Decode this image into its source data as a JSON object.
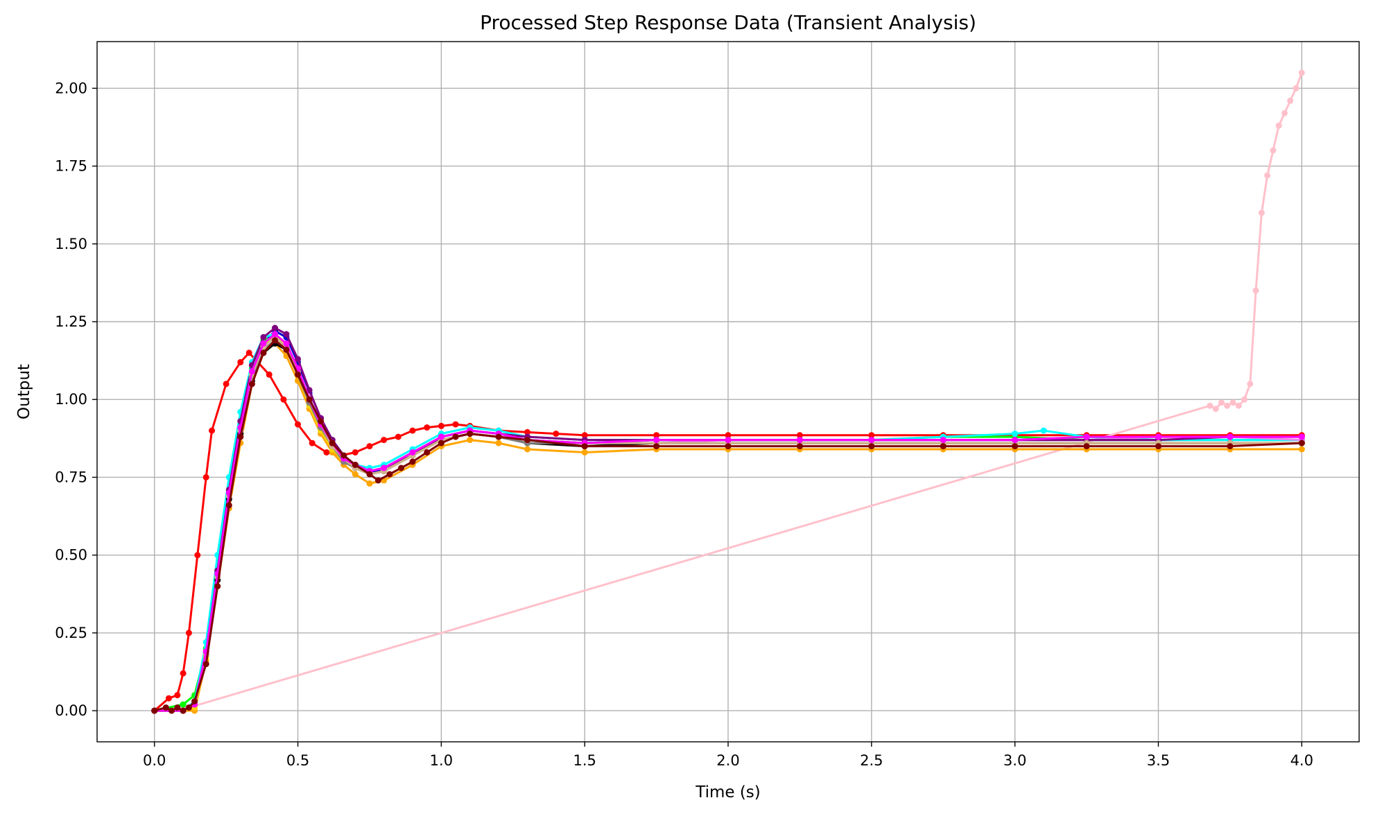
{
  "chart_data": {
    "type": "line",
    "title": "Processed Step Response Data (Transient Analysis)",
    "xlabel": "Time (s)",
    "ylabel": "Output",
    "xlim": [
      -0.2,
      4.2
    ],
    "ylim": [
      -0.1,
      2.15
    ],
    "xticks": [
      0.0,
      0.5,
      1.0,
      1.5,
      2.0,
      2.5,
      3.0,
      3.5,
      4.0
    ],
    "xtick_labels": [
      "0.0",
      "0.5",
      "1.0",
      "1.5",
      "2.0",
      "2.5",
      "3.0",
      "3.5",
      "4.0"
    ],
    "yticks": [
      0.0,
      0.25,
      0.5,
      0.75,
      1.0,
      1.25,
      1.5,
      1.75,
      2.0
    ],
    "ytick_labels": [
      "0.00",
      "0.25",
      "0.50",
      "0.75",
      "1.00",
      "1.25",
      "1.50",
      "1.75",
      "2.00"
    ],
    "grid": true,
    "legend": "none",
    "colors": {
      "bundle": [
        "#0000cd",
        "#00ff00",
        "#00ffff",
        "#ffa500",
        "#ee82ee",
        "#ff00ff",
        "#800080",
        "#ffd700",
        "#c0a090",
        "#000000",
        "#808080",
        "#d2b48c"
      ],
      "early": "#ff0000",
      "late": "#ffc0cb",
      "front": "#800000",
      "grid": "#b0b0b0"
    },
    "series": [
      {
        "color": "#ff0000",
        "x": [
          0.0,
          0.05,
          0.08,
          0.1,
          0.12,
          0.15,
          0.18,
          0.2,
          0.25,
          0.3,
          0.33,
          0.4,
          0.45,
          0.5,
          0.55,
          0.6,
          0.65,
          0.7,
          0.75,
          0.8,
          0.85,
          0.9,
          0.95,
          1.0,
          1.05,
          1.1,
          1.2,
          1.3,
          1.4,
          1.5,
          1.75,
          2.0,
          2.25,
          2.5,
          2.75,
          3.0,
          3.25,
          3.5,
          3.75,
          4.0
        ],
        "y": [
          0.0,
          0.04,
          0.05,
          0.12,
          0.25,
          0.5,
          0.75,
          0.9,
          1.05,
          1.12,
          1.15,
          1.08,
          1.0,
          0.92,
          0.86,
          0.83,
          0.82,
          0.83,
          0.85,
          0.87,
          0.88,
          0.9,
          0.91,
          0.915,
          0.92,
          0.915,
          0.9,
          0.895,
          0.89,
          0.885,
          0.885,
          0.885,
          0.885,
          0.885,
          0.885,
          0.885,
          0.885,
          0.885,
          0.885,
          0.885
        ]
      },
      {
        "color": "#ffc0cb",
        "x": [
          0.0,
          0.12,
          3.68,
          3.7,
          3.72,
          3.74,
          3.76,
          3.78,
          3.8,
          3.82,
          3.84,
          3.86,
          3.88,
          3.9,
          3.92,
          3.94,
          3.96,
          3.98,
          4.0
        ],
        "y": [
          0.0,
          0.01,
          0.98,
          0.97,
          0.99,
          0.98,
          0.99,
          0.98,
          1.0,
          1.05,
          1.35,
          1.6,
          1.72,
          1.8,
          1.88,
          1.92,
          1.96,
          2.0,
          2.05
        ]
      },
      {
        "color": "#0000cd",
        "x": [
          0.0,
          0.1,
          0.14,
          0.18,
          0.22,
          0.26,
          0.3,
          0.34,
          0.38,
          0.42,
          0.46,
          0.5,
          0.54,
          0.58,
          0.62,
          0.66,
          0.7,
          0.75,
          0.8,
          0.9,
          1.0,
          1.1,
          1.2,
          1.3,
          1.5,
          1.75,
          2.0,
          2.25,
          2.5,
          2.75,
          3.0,
          3.25,
          3.5,
          3.75,
          4.0
        ],
        "y": [
          0.0,
          0.0,
          0.02,
          0.18,
          0.42,
          0.68,
          0.9,
          1.08,
          1.18,
          1.22,
          1.2,
          1.12,
          1.02,
          0.94,
          0.87,
          0.82,
          0.79,
          0.77,
          0.77,
          0.82,
          0.88,
          0.9,
          0.89,
          0.87,
          0.86,
          0.87,
          0.87,
          0.87,
          0.87,
          0.87,
          0.87,
          0.87,
          0.87,
          0.87,
          0.87
        ]
      },
      {
        "color": "#00ff00",
        "x": [
          0.0,
          0.1,
          0.14,
          0.18,
          0.22,
          0.26,
          0.3,
          0.34,
          0.38,
          0.42,
          0.46,
          0.5,
          0.54,
          0.58,
          0.62,
          0.66,
          0.7,
          0.75,
          0.8,
          0.9,
          1.0,
          1.1,
          1.2,
          1.3,
          1.5,
          1.75,
          2.0,
          2.25,
          2.5,
          2.75,
          3.0,
          3.25,
          3.5,
          3.75,
          4.0
        ],
        "y": [
          0.0,
          0.02,
          0.05,
          0.2,
          0.45,
          0.7,
          0.92,
          1.1,
          1.19,
          1.2,
          1.17,
          1.1,
          1.0,
          0.92,
          0.86,
          0.81,
          0.79,
          0.77,
          0.78,
          0.83,
          0.88,
          0.9,
          0.89,
          0.87,
          0.86,
          0.87,
          0.87,
          0.87,
          0.87,
          0.88,
          0.88,
          0.87,
          0.87,
          0.87,
          0.87
        ]
      },
      {
        "color": "#00ffff",
        "x": [
          0.0,
          0.1,
          0.14,
          0.18,
          0.22,
          0.26,
          0.3,
          0.34,
          0.38,
          0.42,
          0.46,
          0.5,
          0.54,
          0.58,
          0.62,
          0.66,
          0.7,
          0.75,
          0.8,
          0.9,
          1.0,
          1.1,
          1.2,
          1.3,
          1.5,
          1.75,
          2.0,
          2.25,
          2.5,
          2.75,
          3.0,
          3.1,
          3.25,
          3.5,
          3.75,
          4.0
        ],
        "y": [
          0.0,
          0.0,
          0.03,
          0.22,
          0.5,
          0.75,
          0.96,
          1.12,
          1.2,
          1.21,
          1.16,
          1.08,
          0.98,
          0.9,
          0.85,
          0.81,
          0.79,
          0.78,
          0.79,
          0.84,
          0.89,
          0.91,
          0.9,
          0.88,
          0.87,
          0.87,
          0.87,
          0.87,
          0.87,
          0.88,
          0.89,
          0.9,
          0.88,
          0.87,
          0.87,
          0.87
        ]
      },
      {
        "color": "#ffa500",
        "x": [
          0.0,
          0.1,
          0.14,
          0.18,
          0.22,
          0.26,
          0.3,
          0.34,
          0.38,
          0.42,
          0.46,
          0.5,
          0.54,
          0.58,
          0.62,
          0.66,
          0.7,
          0.75,
          0.8,
          0.9,
          1.0,
          1.1,
          1.2,
          1.3,
          1.5,
          1.75,
          2.0,
          2.25,
          2.5,
          2.75,
          3.0,
          3.25,
          3.5,
          3.75,
          4.0
        ],
        "y": [
          0.0,
          0.0,
          0.0,
          0.16,
          0.4,
          0.65,
          0.86,
          1.05,
          1.15,
          1.18,
          1.14,
          1.06,
          0.97,
          0.89,
          0.83,
          0.79,
          0.76,
          0.73,
          0.74,
          0.79,
          0.85,
          0.87,
          0.86,
          0.84,
          0.83,
          0.84,
          0.84,
          0.84,
          0.84,
          0.84,
          0.84,
          0.84,
          0.84,
          0.84,
          0.84
        ]
      },
      {
        "color": "#ee82ee",
        "x": [
          0.0,
          0.1,
          0.14,
          0.18,
          0.22,
          0.26,
          0.3,
          0.34,
          0.38,
          0.42,
          0.46,
          0.5,
          0.54,
          0.58,
          0.62,
          0.66,
          0.7,
          0.75,
          0.8,
          0.9,
          1.0,
          1.1,
          1.2,
          1.3,
          1.5,
          1.75,
          2.0,
          2.25,
          2.5,
          2.75,
          3.0,
          3.25,
          3.5,
          3.75,
          4.0
        ],
        "y": [
          0.0,
          0.0,
          0.02,
          0.19,
          0.44,
          0.7,
          0.91,
          1.09,
          1.18,
          1.21,
          1.18,
          1.1,
          1.01,
          0.93,
          0.86,
          0.81,
          0.79,
          0.77,
          0.78,
          0.83,
          0.88,
          0.9,
          0.89,
          0.87,
          0.86,
          0.86,
          0.87,
          0.87,
          0.87,
          0.87,
          0.87,
          0.87,
          0.88,
          0.88,
          0.87
        ]
      },
      {
        "color": "#800080",
        "x": [
          0.0,
          0.1,
          0.14,
          0.18,
          0.22,
          0.26,
          0.3,
          0.34,
          0.38,
          0.42,
          0.46,
          0.5,
          0.54,
          0.58,
          0.62,
          0.66,
          0.7,
          0.75,
          0.8,
          0.9,
          1.0,
          1.1,
          1.2,
          1.3,
          1.5,
          1.75,
          2.0,
          2.25,
          2.5,
          2.75,
          3.0,
          3.25,
          3.5,
          3.75,
          4.0
        ],
        "y": [
          0.0,
          0.0,
          0.02,
          0.19,
          0.45,
          0.71,
          0.93,
          1.11,
          1.2,
          1.23,
          1.21,
          1.13,
          1.03,
          0.94,
          0.87,
          0.82,
          0.79,
          0.77,
          0.78,
          0.82,
          0.88,
          0.9,
          0.89,
          0.88,
          0.87,
          0.87,
          0.87,
          0.87,
          0.87,
          0.87,
          0.87,
          0.87,
          0.87,
          0.88,
          0.88
        ]
      },
      {
        "color": "#ffd700",
        "x": [
          0.0,
          0.1,
          0.14,
          0.18,
          0.22,
          0.26,
          0.3,
          0.34,
          0.38,
          0.42,
          0.46,
          0.5,
          0.54,
          0.58,
          0.62,
          0.66,
          0.7,
          0.75,
          0.8,
          0.9,
          1.0,
          1.1,
          1.2,
          1.3,
          1.5,
          1.75,
          2.0,
          2.25,
          2.5,
          2.75,
          3.0,
          3.25,
          3.5,
          3.75,
          4.0
        ],
        "y": [
          0.0,
          0.0,
          0.01,
          0.17,
          0.42,
          0.68,
          0.89,
          1.07,
          1.17,
          1.21,
          1.17,
          1.08,
          0.98,
          0.9,
          0.84,
          0.8,
          0.78,
          0.76,
          0.77,
          0.82,
          0.87,
          0.89,
          0.88,
          0.86,
          0.85,
          0.86,
          0.86,
          0.86,
          0.86,
          0.86,
          0.86,
          0.86,
          0.86,
          0.86,
          0.86
        ]
      },
      {
        "color": "#c0a090",
        "x": [
          0.0,
          0.1,
          0.14,
          0.18,
          0.22,
          0.26,
          0.3,
          0.34,
          0.38,
          0.42,
          0.46,
          0.5,
          0.54,
          0.58,
          0.62,
          0.66,
          0.7,
          0.75,
          0.8,
          0.9,
          1.0,
          1.1,
          1.2,
          1.3,
          1.5,
          1.75,
          2.0,
          2.25,
          2.5,
          2.75,
          3.0,
          3.25,
          3.5,
          3.75,
          4.0
        ],
        "y": [
          0.0,
          0.0,
          0.02,
          0.18,
          0.43,
          0.69,
          0.9,
          1.08,
          1.17,
          1.2,
          1.16,
          1.08,
          0.99,
          0.91,
          0.85,
          0.8,
          0.78,
          0.76,
          0.77,
          0.82,
          0.87,
          0.89,
          0.88,
          0.86,
          0.85,
          0.86,
          0.86,
          0.86,
          0.86,
          0.86,
          0.86,
          0.86,
          0.86,
          0.86,
          0.86
        ]
      },
      {
        "color": "#000000",
        "x": [
          0.0,
          0.1,
          0.14,
          0.18,
          0.22,
          0.26,
          0.3,
          0.34,
          0.38,
          0.42,
          0.46,
          0.5,
          0.54,
          0.58,
          0.62,
          0.66,
          0.7,
          0.75,
          0.8,
          0.9,
          1.0,
          1.1,
          1.2,
          1.3,
          1.5,
          1.75,
          2.0,
          2.25,
          2.5,
          2.75,
          3.0,
          3.25,
          3.5,
          3.75,
          4.0
        ],
        "y": [
          0.0,
          0.0,
          0.02,
          0.18,
          0.42,
          0.68,
          0.89,
          1.06,
          1.15,
          1.18,
          1.16,
          1.09,
          1.0,
          0.92,
          0.85,
          0.81,
          0.78,
          0.76,
          0.77,
          0.82,
          0.87,
          0.89,
          0.88,
          0.86,
          0.85,
          0.86,
          0.86,
          0.86,
          0.86,
          0.86,
          0.86,
          0.86,
          0.86,
          0.86,
          0.86
        ]
      },
      {
        "color": "#808080",
        "x": [
          0.0,
          0.1,
          0.14,
          0.18,
          0.22,
          0.26,
          0.3,
          0.34,
          0.38,
          0.42,
          0.46,
          0.5,
          0.54,
          0.58,
          0.62,
          0.66,
          0.7,
          0.75,
          0.8,
          0.9,
          1.0,
          1.1,
          1.2,
          1.3,
          1.5,
          1.75,
          2.0,
          2.25,
          2.5,
          2.75,
          3.0,
          3.25,
          3.5,
          3.75,
          4.0
        ],
        "y": [
          0.0,
          0.0,
          0.02,
          0.18,
          0.43,
          0.69,
          0.9,
          1.07,
          1.16,
          1.19,
          1.16,
          1.08,
          0.99,
          0.91,
          0.85,
          0.8,
          0.78,
          0.76,
          0.77,
          0.82,
          0.87,
          0.89,
          0.88,
          0.86,
          0.86,
          0.86,
          0.86,
          0.86,
          0.86,
          0.86,
          0.86,
          0.86,
          0.86,
          0.86,
          0.86
        ]
      },
      {
        "color": "#d2b48c",
        "x": [
          0.0,
          0.1,
          0.14,
          0.18,
          0.22,
          0.26,
          0.3,
          0.34,
          0.38,
          0.42,
          0.46,
          0.5,
          0.54,
          0.58,
          0.62,
          0.66,
          0.7,
          0.75,
          0.8,
          0.9,
          1.0,
          1.1,
          1.2,
          1.3,
          1.5,
          1.75,
          2.0,
          2.25,
          2.5,
          2.75,
          3.0,
          3.25,
          3.5,
          3.75,
          4.0
        ],
        "y": [
          0.0,
          0.0,
          0.02,
          0.18,
          0.43,
          0.69,
          0.9,
          1.08,
          1.17,
          1.2,
          1.17,
          1.09,
          1.0,
          0.92,
          0.85,
          0.81,
          0.78,
          0.76,
          0.77,
          0.82,
          0.87,
          0.89,
          0.88,
          0.87,
          0.86,
          0.86,
          0.86,
          0.86,
          0.86,
          0.86,
          0.86,
          0.86,
          0.86,
          0.86,
          0.86
        ]
      },
      {
        "color": "#ff00ff",
        "x": [
          0.0,
          0.1,
          0.14,
          0.18,
          0.22,
          0.26,
          0.3,
          0.34,
          0.38,
          0.42,
          0.46,
          0.5,
          0.54,
          0.58,
          0.62,
          0.66,
          0.7,
          0.75,
          0.8,
          0.9,
          1.0,
          1.1,
          1.2,
          1.3,
          1.5,
          1.75,
          2.0,
          2.25,
          2.5,
          2.75,
          3.0,
          3.25,
          3.5,
          3.75,
          4.0
        ],
        "y": [
          0.0,
          0.0,
          0.02,
          0.19,
          0.44,
          0.7,
          0.91,
          1.09,
          1.18,
          1.21,
          1.18,
          1.1,
          1.0,
          0.92,
          0.86,
          0.81,
          0.79,
          0.77,
          0.78,
          0.83,
          0.88,
          0.9,
          0.89,
          0.87,
          0.86,
          0.87,
          0.87,
          0.87,
          0.87,
          0.87,
          0.87,
          0.88,
          0.88,
          0.88,
          0.88
        ]
      },
      {
        "color": "#800000",
        "x": [
          0.0,
          0.04,
          0.06,
          0.08,
          0.1,
          0.12,
          0.14,
          0.18,
          0.22,
          0.26,
          0.3,
          0.34,
          0.38,
          0.42,
          0.46,
          0.5,
          0.54,
          0.58,
          0.62,
          0.66,
          0.7,
          0.75,
          0.78,
          0.82,
          0.86,
          0.9,
          0.95,
          1.0,
          1.05,
          1.1,
          1.2,
          1.3,
          1.5,
          1.75,
          2.0,
          2.25,
          2.5,
          2.75,
          3.0,
          3.25,
          3.5,
          3.75,
          4.0
        ],
        "y": [
          0.0,
          0.01,
          0.0,
          0.01,
          0.0,
          0.01,
          0.03,
          0.15,
          0.4,
          0.66,
          0.88,
          1.05,
          1.15,
          1.19,
          1.16,
          1.08,
          1.0,
          0.93,
          0.86,
          0.82,
          0.79,
          0.76,
          0.74,
          0.76,
          0.78,
          0.8,
          0.83,
          0.86,
          0.88,
          0.89,
          0.88,
          0.87,
          0.85,
          0.85,
          0.85,
          0.85,
          0.85,
          0.85,
          0.85,
          0.85,
          0.85,
          0.85,
          0.86
        ]
      }
    ]
  }
}
